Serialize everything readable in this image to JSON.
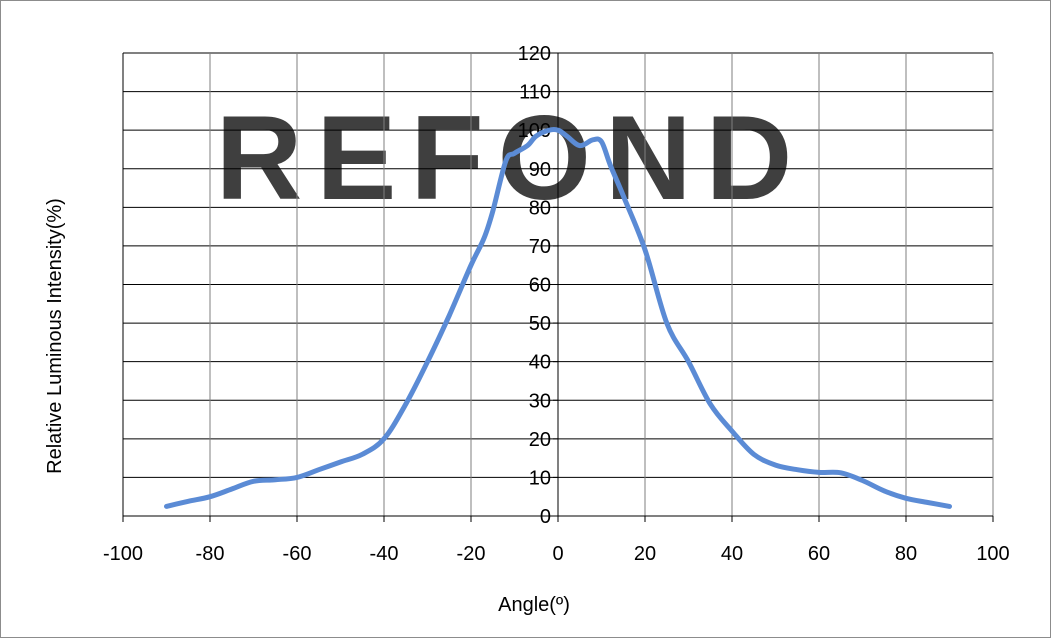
{
  "chart_data": {
    "type": "line",
    "title": "",
    "xlabel": "Angle(º)",
    "ylabel": "Relative Luminous Intensity(%)",
    "xlim": [
      -100,
      100
    ],
    "ylim": [
      0,
      120
    ],
    "x_ticks": [
      -100,
      -80,
      -60,
      -40,
      -20,
      0,
      20,
      40,
      60,
      80,
      100
    ],
    "y_ticks": [
      0,
      10,
      20,
      30,
      40,
      50,
      60,
      70,
      80,
      90,
      100,
      110,
      120
    ],
    "grid": true,
    "legend": "none",
    "watermark": "REFOND",
    "colors": {
      "line": "#5B8BD5",
      "grid": "#000000",
      "axis": "#000000",
      "frame": "#8c8c8c",
      "watermark": "#e3e6f2"
    },
    "series": [
      {
        "x": [
          -90,
          -85,
          -80,
          -75,
          -70,
          -65,
          -60,
          -55,
          -50,
          -45,
          -40,
          -35,
          -30,
          -25,
          -20,
          -17,
          -15,
          -12,
          -10,
          -7,
          -5,
          -2,
          0,
          2,
          5,
          8,
          10,
          12,
          15,
          20,
          25,
          30,
          35,
          40,
          45,
          50,
          55,
          60,
          65,
          70,
          75,
          80,
          85,
          90
        ],
        "y": [
          2.5,
          3.8,
          5,
          7,
          9,
          9.4,
          10,
          12,
          14,
          16,
          20,
          29,
          40,
          52,
          65,
          72,
          79,
          92,
          94,
          96,
          98.5,
          100,
          100,
          98.5,
          96,
          97.5,
          97,
          91,
          83,
          69,
          50,
          40,
          29,
          22,
          16,
          13.2,
          12,
          11.3,
          11.2,
          9.2,
          6.5,
          4.6,
          3.5,
          2.5
        ]
      }
    ]
  }
}
